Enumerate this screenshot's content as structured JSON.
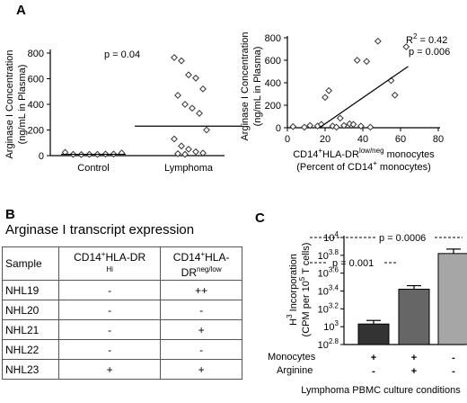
{
  "panels": {
    "a": "A",
    "b": "B",
    "c": "C"
  },
  "chart_data": [
    {
      "type": "scatter",
      "panel": "A-left",
      "ylabel_line1": "Arginase I Concentration",
      "ylabel_line2": "(ng/mL in Plasma)",
      "yticks": [
        "0",
        "200",
        "400",
        "600",
        "800"
      ],
      "ylim": [
        0,
        800
      ],
      "categories": [
        "Control",
        "Lymphoma"
      ],
      "annotation": "p = 0.04",
      "groups": [
        {
          "category": "Control",
          "values": [
            25,
            10,
            8,
            10,
            10,
            12,
            12,
            20
          ],
          "mean": 10
        },
        {
          "category": "Lymphoma",
          "values": [
            765,
            740,
            630,
            605,
            520,
            470,
            400,
            370,
            330,
            200,
            130,
            75,
            50,
            30,
            20,
            15,
            10
          ],
          "mean": 230
        }
      ],
      "colors": {
        "marker_edge": "#333333",
        "marker_fill": "#ffffff"
      }
    },
    {
      "type": "scatter",
      "panel": "A-right",
      "ylabel_line1": "Arginase I Concentration",
      "ylabel_line2": "(ng/mL in Plasma)",
      "xlabel_line1_pre": "CD14",
      "xlabel_line1_sup1": "+",
      "xlabel_line1_mid": "HLA-DR",
      "xlabel_line1_sup2": "low/neg",
      "xlabel_line1_post": " monocytes",
      "xlabel_line2_pre": "(Percent of CD14",
      "xlabel_line2_sup": "+",
      "xlabel_line2_post": " monocytes)",
      "xticks": [
        "0",
        "20",
        "40",
        "60",
        "80"
      ],
      "yticks": [
        "0",
        "200",
        "400",
        "600",
        "800"
      ],
      "xlim": [
        0,
        80
      ],
      "ylim": [
        0,
        800
      ],
      "annotation_r2_pre": "R",
      "annotation_r2_sup": "2",
      "annotation_r2_post": " = 0.42",
      "annotation_p": "p = 0.006",
      "points": [
        [
          3,
          10
        ],
        [
          9,
          5
        ],
        [
          12,
          20
        ],
        [
          16,
          15
        ],
        [
          18,
          30
        ],
        [
          20,
          270
        ],
        [
          22,
          330
        ],
        [
          24,
          15
        ],
        [
          26,
          5
        ],
        [
          28,
          85
        ],
        [
          30,
          20
        ],
        [
          33,
          35
        ],
        [
          35,
          30
        ],
        [
          37,
          600
        ],
        [
          39,
          15
        ],
        [
          42,
          590
        ],
        [
          44,
          5
        ],
        [
          48,
          770
        ],
        [
          55,
          420
        ],
        [
          57,
          290
        ],
        [
          63,
          720
        ]
      ],
      "fit_line": {
        "x": [
          17,
          64
        ],
        "y": [
          0,
          545
        ]
      }
    },
    {
      "type": "bar",
      "panel": "C",
      "ylabel_line1_pre": "H",
      "ylabel_line1_sup": "3",
      "ylabel_line1_post": " Incorporation",
      "ylabel_line2_pre": "(CPM per 10",
      "ylabel_line2_sup": "5",
      "ylabel_line2_post": " T cells)",
      "yscale": "log",
      "ylim_log10": [
        2.8,
        4.0
      ],
      "yticks": [
        {
          "base": "10",
          "exp": "4",
          "v": 4.0
        },
        {
          "base": "10",
          "exp": "3.8",
          "v": 3.8
        },
        {
          "base": "10",
          "exp": "3.6",
          "v": 3.6
        },
        {
          "base": "10",
          "exp": "3.4",
          "v": 3.4
        },
        {
          "base": "10",
          "exp": "3.2",
          "v": 3.2
        },
        {
          "base": "10",
          "exp": "3",
          "v": 3.0
        },
        {
          "base": "10",
          "exp": "2.8",
          "v": 2.8
        }
      ],
      "conditions": [
        {
          "monocytes": "+",
          "arginine": "-",
          "log10_value": 3.03,
          "log10_err": 0.04,
          "color": "#333333"
        },
        {
          "monocytes": "+",
          "arginine": "+",
          "log10_value": 3.42,
          "log10_err": 0.04,
          "color": "#666666"
        },
        {
          "monocytes": "-",
          "arginine": "-",
          "log10_value": 3.82,
          "log10_err": 0.05,
          "color": "#a6a6a6"
        }
      ],
      "row_labels": [
        "Monocytes",
        "Arginine"
      ],
      "xlabel": "Lymphoma PBMC culture conditions",
      "annotations": [
        "p = 0.001",
        "p = 0.0006"
      ]
    }
  ],
  "table": {
    "title": "Arginase I transcript expression",
    "col_sample": "Sample",
    "col_hi_main": "CD14",
    "col_hi_sup": "+",
    "col_hi_rest": "HLA-DR",
    "col_hi_sup2": "Hi",
    "col_low_main": "CD14",
    "col_low_sup": "+",
    "col_low_rest": "HLA-",
    "col_low_line2": "DR",
    "col_low_sup2": "neg/low",
    "rows": [
      {
        "sample": "NHL19",
        "hi": "-",
        "low": "++"
      },
      {
        "sample": "NHL20",
        "hi": "-",
        "low": "-"
      },
      {
        "sample": "NHL21",
        "hi": "-",
        "low": "+"
      },
      {
        "sample": "NHL22",
        "hi": "-",
        "low": "-"
      },
      {
        "sample": "NHL23",
        "hi": "+",
        "low": "+"
      }
    ]
  }
}
